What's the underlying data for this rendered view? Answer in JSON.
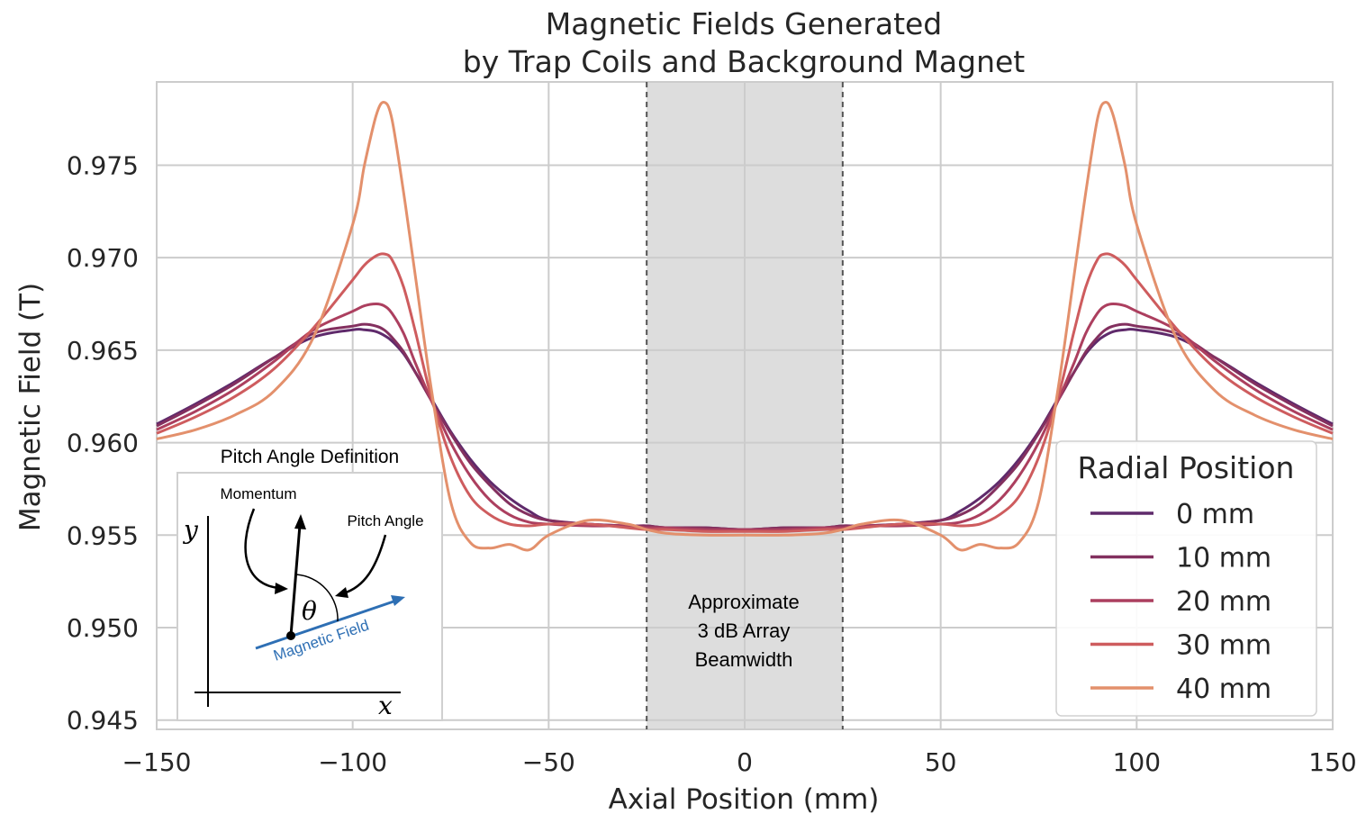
{
  "chart_data": {
    "type": "line",
    "title": [
      "Magnetic Fields Generated",
      "by Trap Coils and Background Magnet"
    ],
    "xlabel": "Axial Position (mm)",
    "ylabel": "Magnetic Field (T)",
    "xlim": [
      -150,
      150
    ],
    "ylim": [
      0.9445,
      0.9795
    ],
    "xticks": [
      -150,
      -100,
      -50,
      0,
      50,
      100,
      150
    ],
    "xtick_labels": [
      "−150",
      "−100",
      "−50",
      "0",
      "50",
      "100",
      "150"
    ],
    "yticks": [
      0.945,
      0.95,
      0.955,
      0.96,
      0.965,
      0.97,
      0.975
    ],
    "ytick_labels": [
      "0.945",
      "0.950",
      "0.955",
      "0.960",
      "0.965",
      "0.970",
      "0.975"
    ],
    "grid": true,
    "legend": {
      "title": "Radial Position",
      "placement": "lower-right"
    },
    "shaded_region": {
      "x": [
        -25,
        25
      ],
      "color": "#dddddd",
      "label": [
        "Approximate",
        "3 dB Array",
        "Beamwidth"
      ]
    },
    "x": [
      -150,
      -140,
      -130,
      -120,
      -110,
      -100,
      -97,
      -94,
      -92,
      -90,
      -87,
      -84,
      -80,
      -75,
      -70,
      -65,
      -60,
      -55,
      -50,
      -40,
      -30,
      -25,
      -20,
      -10,
      0,
      10,
      20,
      25,
      30,
      40,
      50,
      55,
      60,
      65,
      70,
      75,
      80,
      84,
      87,
      90,
      92,
      94,
      97,
      100,
      110,
      120,
      130,
      140,
      150
    ],
    "series": [
      {
        "name": "0 mm",
        "color": "#5f2a6b",
        "values": [
          0.961,
          0.9621,
          0.9633,
          0.9646,
          0.9657,
          0.9661,
          0.9661,
          0.966,
          0.9658,
          0.9655,
          0.9648,
          0.9638,
          0.9624,
          0.9606,
          0.9591,
          0.9579,
          0.957,
          0.9563,
          0.9558,
          0.9556,
          0.9555,
          0.9555,
          0.9554,
          0.9554,
          0.9553,
          0.9554,
          0.9554,
          0.9555,
          0.9555,
          0.9556,
          0.9558,
          0.9563,
          0.957,
          0.9579,
          0.9591,
          0.9606,
          0.9624,
          0.9638,
          0.9648,
          0.9655,
          0.9658,
          0.966,
          0.9661,
          0.9661,
          0.9657,
          0.9646,
          0.9633,
          0.9621,
          0.961
        ]
      },
      {
        "name": "10 mm",
        "color": "#83305f",
        "values": [
          0.9609,
          0.962,
          0.9632,
          0.9646,
          0.9659,
          0.9663,
          0.9664,
          0.9663,
          0.9661,
          0.9657,
          0.9649,
          0.9638,
          0.9623,
          0.9605,
          0.9589,
          0.9577,
          0.9567,
          0.9561,
          0.9558,
          0.9556,
          0.9555,
          0.9555,
          0.9554,
          0.9554,
          0.9553,
          0.9554,
          0.9554,
          0.9555,
          0.9555,
          0.9556,
          0.9558,
          0.9561,
          0.9567,
          0.9577,
          0.9589,
          0.9605,
          0.9623,
          0.9638,
          0.9649,
          0.9657,
          0.9661,
          0.9663,
          0.9664,
          0.9663,
          0.9659,
          0.9646,
          0.9632,
          0.962,
          0.9609
        ]
      },
      {
        "name": "20 mm",
        "color": "#ac3f5f",
        "values": [
          0.9607,
          0.9617,
          0.9629,
          0.9644,
          0.9661,
          0.9671,
          0.9674,
          0.9675,
          0.9674,
          0.967,
          0.9659,
          0.9643,
          0.9623,
          0.96,
          0.9582,
          0.9569,
          0.9561,
          0.9557,
          0.9556,
          0.9555,
          0.9555,
          0.9554,
          0.9554,
          0.9553,
          0.9553,
          0.9553,
          0.9554,
          0.9554,
          0.9555,
          0.9555,
          0.9556,
          0.9557,
          0.9561,
          0.9569,
          0.9582,
          0.96,
          0.9623,
          0.9643,
          0.9659,
          0.967,
          0.9674,
          0.9675,
          0.9674,
          0.9671,
          0.9661,
          0.9644,
          0.9629,
          0.9617,
          0.9607
        ]
      },
      {
        "name": "30 mm",
        "color": "#ce5c5e",
        "values": [
          0.9605,
          0.9614,
          0.9625,
          0.964,
          0.9662,
          0.9688,
          0.9696,
          0.9701,
          0.9702,
          0.9699,
          0.9684,
          0.966,
          0.9625,
          0.9592,
          0.9571,
          0.9561,
          0.9556,
          0.9555,
          0.9556,
          0.9556,
          0.9554,
          0.9553,
          0.9553,
          0.9552,
          0.9552,
          0.9552,
          0.9553,
          0.9553,
          0.9554,
          0.9556,
          0.9556,
          0.9555,
          0.9556,
          0.9561,
          0.9571,
          0.9592,
          0.9625,
          0.966,
          0.9684,
          0.9699,
          0.9702,
          0.9701,
          0.9696,
          0.9688,
          0.9662,
          0.964,
          0.9625,
          0.9614,
          0.9605
        ]
      },
      {
        "name": "40 mm",
        "color": "#e3906c",
        "values": [
          0.9602,
          0.9607,
          0.9615,
          0.9628,
          0.9657,
          0.9718,
          0.975,
          0.9777,
          0.9784,
          0.9775,
          0.9735,
          0.969,
          0.963,
          0.9568,
          0.9546,
          0.9543,
          0.9545,
          0.9542,
          0.955,
          0.9558,
          0.9556,
          0.9553,
          0.9551,
          0.955,
          0.955,
          0.955,
          0.9551,
          0.9553,
          0.9556,
          0.9558,
          0.955,
          0.9542,
          0.9545,
          0.9543,
          0.9546,
          0.9568,
          0.963,
          0.969,
          0.9735,
          0.9775,
          0.9784,
          0.9777,
          0.975,
          0.9718,
          0.9657,
          0.9628,
          0.9615,
          0.9607,
          0.9602
        ]
      }
    ]
  },
  "inset": {
    "title": "Pitch Angle Definition",
    "momentum_label": "Momentum",
    "pitch_angle_label": "Pitch Angle",
    "angle_symbol": "θ",
    "field_label": "Magnetic Field",
    "y_axis_symbol": "y",
    "x_axis_symbol": "x",
    "field_color": "#2e6fb4"
  }
}
